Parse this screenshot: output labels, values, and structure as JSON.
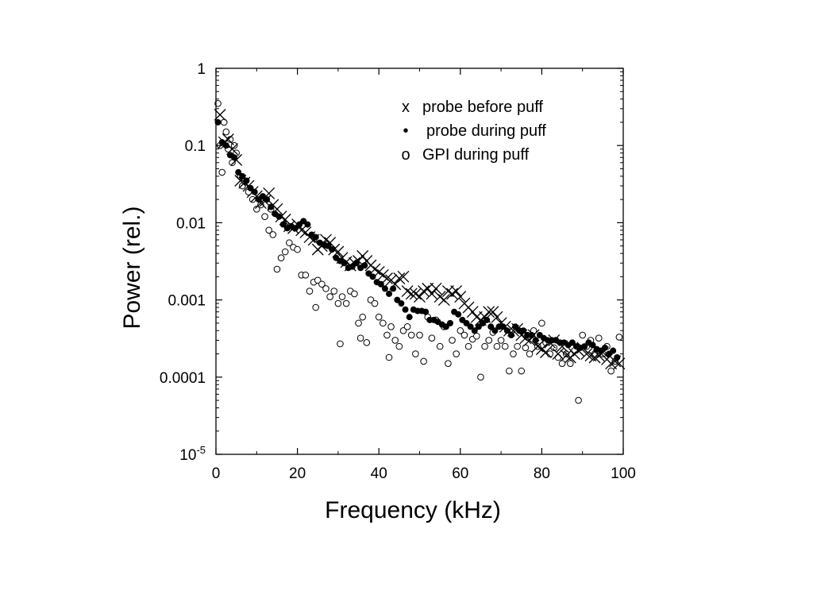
{
  "chart_data": {
    "type": "scatter",
    "title": "",
    "xlabel": "Frequency (kHz)",
    "ylabel": "Power (rel.)",
    "xlim": [
      0,
      100
    ],
    "ylim": [
      1e-05,
      1
    ],
    "y_scale": "log",
    "grid": false,
    "legend_position": "top-right",
    "x_ticks": [
      {
        "value": 0,
        "label": "0"
      },
      {
        "value": 20,
        "label": "20"
      },
      {
        "value": 40,
        "label": "40"
      },
      {
        "value": 60,
        "label": "60"
      },
      {
        "value": 80,
        "label": "80"
      },
      {
        "value": 100,
        "label": "100"
      }
    ],
    "y_ticks": [
      {
        "value": 1,
        "label": "1"
      },
      {
        "value": 0.1,
        "label": "0.1"
      },
      {
        "value": 0.01,
        "label": "0.01"
      },
      {
        "value": 0.001,
        "label": "0.001"
      },
      {
        "value": 0.0001,
        "label": "0.0001"
      },
      {
        "value": 1e-05,
        "label": "10",
        "exponent": "-5"
      }
    ],
    "series": [
      {
        "name": "probe before puff",
        "legend_marker": "x",
        "marker": "cross",
        "x": [
          1,
          2,
          3,
          4,
          5,
          6,
          7,
          8,
          9,
          10,
          11,
          12,
          13,
          14,
          15,
          16,
          17,
          18,
          19,
          20,
          21,
          22,
          23,
          24,
          25,
          26,
          27,
          28,
          29,
          30,
          31,
          32,
          33,
          34,
          35,
          36,
          37,
          38,
          39,
          40,
          41,
          42,
          43,
          44,
          45,
          46,
          47,
          48,
          49,
          50,
          51,
          52,
          53,
          54,
          55,
          56,
          57,
          58,
          59,
          60,
          61,
          62,
          63,
          64,
          65,
          66,
          67,
          68,
          69,
          70,
          71,
          72,
          73,
          74,
          75,
          76,
          77,
          78,
          79,
          80,
          81,
          82,
          83,
          84,
          85,
          86,
          87,
          88,
          89,
          90,
          91,
          92,
          93,
          94,
          95,
          96,
          97,
          98,
          99
        ],
        "y": [
          0.25,
          0.11,
          0.12,
          0.09,
          0.065,
          0.035,
          0.033,
          0.03,
          0.025,
          0.022,
          0.018,
          0.019,
          0.024,
          0.017,
          0.015,
          0.012,
          0.011,
          0.009,
          0.0085,
          0.0095,
          0.008,
          0.0075,
          0.0065,
          0.006,
          0.0045,
          0.005,
          0.006,
          0.0055,
          0.0045,
          0.0042,
          0.0035,
          0.0031,
          0.0028,
          0.003,
          0.0032,
          0.0037,
          0.0032,
          0.0028,
          0.0025,
          0.0023,
          0.0021,
          0.0019,
          0.0018,
          0.0016,
          0.0019,
          0.002,
          0.0013,
          0.0012,
          0.0012,
          0.0011,
          0.0013,
          0.0014,
          0.0012,
          0.0014,
          0.0011,
          0.001,
          0.0013,
          0.0012,
          0.0013,
          0.0011,
          0.0009,
          0.0008,
          0.0007,
          0.0006,
          0.00055,
          0.0006,
          0.0007,
          0.0007,
          0.0006,
          0.0005,
          0.00045,
          0.0004,
          0.0004,
          0.00042,
          0.00035,
          0.00032,
          0.0003,
          0.00035,
          0.00025,
          0.00023,
          0.00021,
          0.00028,
          0.0003,
          0.0002,
          0.00025,
          0.00019,
          0.00018,
          0.0002,
          0.00022,
          0.00024,
          0.0002,
          0.00019,
          0.00018,
          0.00019,
          0.00021,
          0.00017,
          0.00015,
          0.00016,
          0.00015
        ]
      },
      {
        "name": "probe during puff",
        "legend_marker": "•",
        "marker": "filled-circle",
        "x": [
          0.5,
          1.5,
          2.5,
          3.5,
          4.5,
          5.5,
          6.5,
          7.5,
          8.5,
          9.5,
          10.5,
          11.5,
          12.5,
          13.5,
          14.5,
          15.5,
          16.5,
          17.5,
          18.5,
          19.5,
          20.5,
          21.5,
          22.5,
          23.5,
          24.5,
          25.5,
          26.5,
          27.5,
          28.5,
          29.5,
          30.5,
          31.5,
          32.5,
          33.5,
          34.5,
          35.5,
          36.5,
          37.5,
          38.5,
          39.5,
          40.5,
          41.5,
          42.5,
          43.5,
          44.5,
          45.5,
          46.5,
          47.5,
          48.5,
          49.5,
          50.5,
          51.5,
          52.5,
          53.5,
          54.5,
          55.5,
          56.5,
          57.5,
          58.5,
          59.5,
          60.5,
          61.5,
          62.5,
          63.5,
          64.5,
          65.5,
          66.5,
          67.5,
          68.5,
          69.5,
          70.5,
          71.5,
          72.5,
          73.5,
          74.5,
          75.5,
          76.5,
          77.5,
          78.5,
          79.5,
          80.5,
          81.5,
          82.5,
          83.5,
          84.5,
          85.5,
          86.5,
          87.5,
          88.5,
          89.5,
          90.5,
          91.5,
          92.5,
          93.5,
          94.5,
          95.5,
          96.5,
          97.5,
          98.5
        ],
        "y": [
          0.2,
          0.11,
          0.1,
          0.075,
          0.07,
          0.045,
          0.04,
          0.035,
          0.028,
          0.025,
          0.02,
          0.022,
          0.02,
          0.016,
          0.013,
          0.012,
          0.0095,
          0.0085,
          0.009,
          0.0085,
          0.0095,
          0.0105,
          0.0095,
          0.007,
          0.0065,
          0.0055,
          0.0052,
          0.005,
          0.0045,
          0.0035,
          0.0032,
          0.003,
          0.0026,
          0.0027,
          0.003,
          0.0026,
          0.0028,
          0.0022,
          0.002,
          0.0017,
          0.0016,
          0.0014,
          0.0012,
          0.0014,
          0.001,
          0.0009,
          0.00075,
          0.0006,
          0.00075,
          0.00072,
          0.00072,
          0.0007,
          0.00055,
          0.00055,
          0.00052,
          0.00048,
          0.00045,
          0.0005,
          0.0007,
          0.00065,
          0.00055,
          0.0005,
          0.00045,
          0.0004,
          0.00045,
          0.0005,
          0.00055,
          0.00045,
          0.0004,
          0.00045,
          0.00045,
          0.0004,
          0.00035,
          0.00045,
          0.0004,
          0.0004,
          0.00035,
          0.00035,
          0.0003,
          0.00035,
          0.00032,
          0.0003,
          0.0003,
          0.0003,
          0.00028,
          0.00028,
          0.00026,
          0.00028,
          0.00025,
          0.00024,
          0.00025,
          0.00028,
          0.00026,
          0.00023,
          0.00022,
          0.00024,
          0.0002,
          0.00022,
          0.00018
        ]
      },
      {
        "name": "GPI during puff",
        "legend_marker": "o",
        "marker": "open-circle",
        "x": [
          0.5,
          1,
          1.5,
          2,
          2.5,
          3,
          3.5,
          4,
          4.5,
          5,
          6,
          6.5,
          7,
          8,
          9,
          10,
          11,
          12,
          13,
          13.5,
          14,
          15,
          16,
          17,
          18,
          19,
          20,
          21,
          22,
          23,
          24,
          24.5,
          25,
          26,
          27,
          28,
          29,
          30,
          30.5,
          31,
          32,
          33,
          34,
          35,
          35.5,
          36,
          37,
          38,
          39,
          40,
          41,
          42,
          42.5,
          43,
          44,
          45,
          46,
          47,
          48,
          49,
          50,
          51,
          52,
          53,
          54,
          55,
          56,
          57,
          58,
          59,
          60,
          61,
          62,
          63,
          64,
          65,
          66,
          67,
          68,
          69,
          70,
          71,
          72,
          73,
          74,
          75,
          76,
          77,
          78,
          79,
          80,
          81,
          82,
          83,
          84,
          85,
          86,
          87,
          88,
          89,
          90,
          91,
          92,
          93,
          94,
          95,
          96,
          97,
          98,
          99
        ],
        "y": [
          0.35,
          0.1,
          0.045,
          0.2,
          0.15,
          0.09,
          0.12,
          0.06,
          0.1,
          0.08,
          0.04,
          0.03,
          0.035,
          0.025,
          0.02,
          0.015,
          0.017,
          0.012,
          0.008,
          0.015,
          0.007,
          0.0025,
          0.0035,
          0.0042,
          0.0055,
          0.0048,
          0.0045,
          0.0021,
          0.0021,
          0.0013,
          0.0017,
          0.0008,
          0.0018,
          0.0016,
          0.0014,
          0.0011,
          0.0013,
          0.0009,
          0.00027,
          0.0011,
          0.0009,
          0.0013,
          0.0012,
          0.0005,
          0.00032,
          0.0006,
          0.00028,
          0.001,
          0.0009,
          0.0006,
          0.0005,
          0.00035,
          0.00018,
          0.00045,
          0.0003,
          0.00025,
          0.0004,
          0.00045,
          0.00035,
          0.0002,
          0.00035,
          0.00016,
          0.0006,
          0.00032,
          0.00055,
          0.00025,
          0.00045,
          0.00015,
          0.0003,
          0.0002,
          0.0004,
          0.00035,
          0.00025,
          0.00031,
          0.00034,
          0.0001,
          0.00025,
          0.0003,
          0.00038,
          0.00025,
          0.0003,
          0.00025,
          0.00012,
          0.0002,
          0.00025,
          0.00012,
          0.00024,
          0.0002,
          0.0004,
          0.00025,
          0.0005,
          0.00028,
          0.0002,
          0.00024,
          0.00018,
          0.00015,
          0.0002,
          0.00015,
          0.00022,
          5e-05,
          0.00035,
          0.00025,
          0.0003,
          0.0002,
          0.00032,
          0.0002,
          0.00025,
          0.00012,
          0.00016,
          0.00033
        ]
      }
    ]
  }
}
